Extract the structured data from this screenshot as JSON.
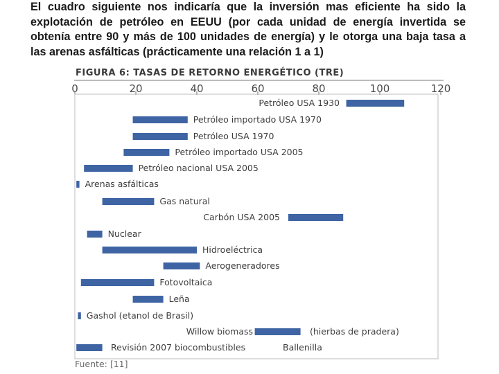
{
  "intro_text": "El cuadro siguiente nos indicaría que la inversión mas eficiente ha sido la explotación de petróleo en EEUU  (por cada unidad de energía invertida se obtenía entre 90 y más de 100 unidades de energía) y le otorga una baja tasa a las arenas asfálticas (prácticamente una relación  1 a 1)",
  "chart_data": {
    "type": "bar",
    "orientation": "horizontal",
    "title": "FIGURA 6: TASAS DE RETORNO ENERGÉTICO (TRE)",
    "xlabel": "",
    "ylabel": "",
    "xlim": [
      0,
      120
    ],
    "xticks": [
      0,
      20,
      40,
      60,
      80,
      100,
      120
    ],
    "bar_color": "#3e64a4",
    "source": "Fuente: [11]",
    "series": [
      {
        "label": "Petróleo USA 1930",
        "min": 89,
        "max": 108
      },
      {
        "label": "Petróleo importado USA 1970",
        "min": 19,
        "max": 37
      },
      {
        "label": "Petróleo USA 1970",
        "min": 19,
        "max": 37
      },
      {
        "label": "Petróleo importado USA 2005",
        "min": 16,
        "max": 31
      },
      {
        "label": "Petróleo nacional USA 2005",
        "min": 3,
        "max": 19
      },
      {
        "label": "Arenas asfálticas",
        "min": 0.5,
        "max": 1.5
      },
      {
        "label": "Gas natural",
        "min": 9,
        "max": 26
      },
      {
        "label": "Carbón USA 2005",
        "min": 70,
        "max": 88
      },
      {
        "label": "Nuclear",
        "min": 4,
        "max": 9
      },
      {
        "label": "Hidroeléctrica",
        "min": 9,
        "max": 40
      },
      {
        "label": "Aerogeneradores",
        "min": 29,
        "max": 41
      },
      {
        "label": "Fotovoltaica",
        "min": 2,
        "max": 26
      },
      {
        "label": "Leña",
        "min": 19,
        "max": 29
      },
      {
        "label": "Gashol (etanol de Brasil)",
        "min": 1,
        "max": 2
      },
      {
        "label": "Willow biomass",
        "min": 59,
        "max": 74
      },
      {
        "label": "(hierbas de pradera)",
        "min": 59,
        "max": 74
      },
      {
        "label": "Revisión 2007 biocombustibles",
        "min": 0.5,
        "max": 9
      },
      {
        "label": "Ballenilla",
        "min": 0.5,
        "max": 9
      }
    ]
  }
}
